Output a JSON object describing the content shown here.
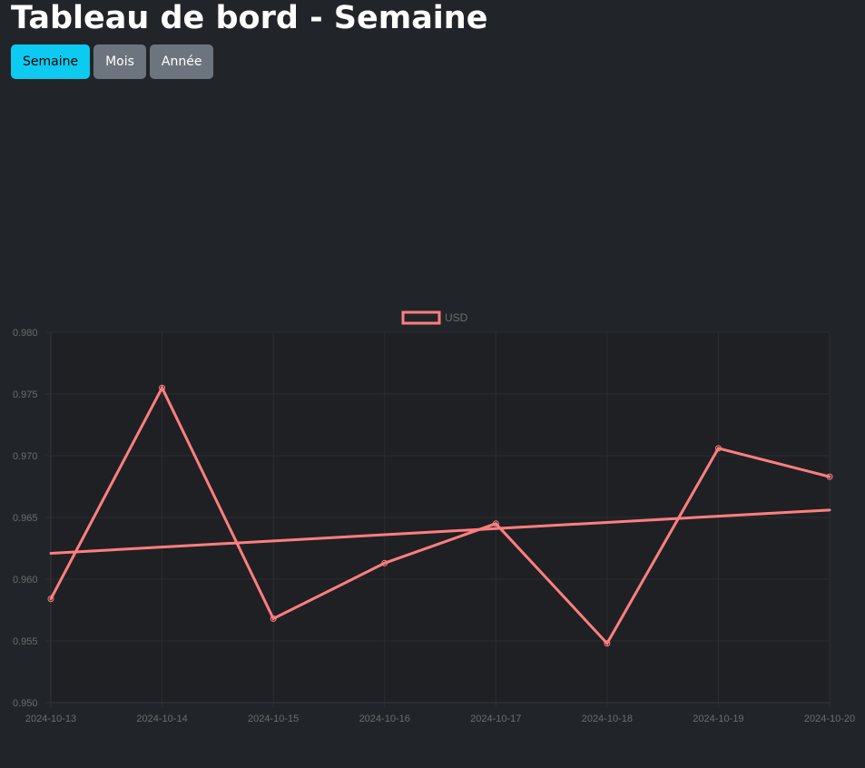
{
  "header": {
    "title": "Tableau de bord - Semaine"
  },
  "period_buttons": [
    {
      "label": "Semaine",
      "active": true
    },
    {
      "label": "Mois",
      "active": false
    },
    {
      "label": "Année",
      "active": false
    }
  ],
  "colors": {
    "background": "#212529",
    "accent": "#0dcaf0",
    "button_inactive": "#6c757d",
    "series": "#ff7f7f"
  },
  "chart_data": {
    "type": "line",
    "title": "",
    "xlabel": "",
    "ylabel": "",
    "legend_position": "top-center",
    "grid": true,
    "x": [
      "2024-10-13",
      "2024-10-14",
      "2024-10-15",
      "2024-10-16",
      "2024-10-17",
      "2024-10-18",
      "2024-10-19",
      "2024-10-20"
    ],
    "ylim": [
      0.95,
      0.98
    ],
    "yticks": [
      "0.980",
      "0.975",
      "0.970",
      "0.965",
      "0.960",
      "0.955",
      "0.950"
    ],
    "series": [
      {
        "name": "USD",
        "color": "#ff7f7f",
        "values": [
          0.9584,
          0.9755,
          0.9568,
          0.9613,
          0.9645,
          0.9548,
          0.9706,
          0.9683
        ]
      },
      {
        "color": "#ff7f7f",
        "kind": "trend",
        "values": [
          0.9621,
          0.9626,
          0.9631,
          0.9636,
          0.9641,
          0.9646,
          0.9651,
          0.9656
        ]
      }
    ]
  }
}
